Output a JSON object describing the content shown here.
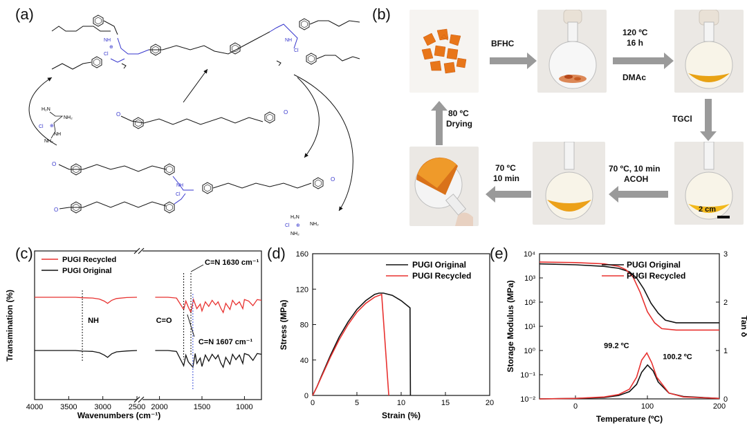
{
  "panels": {
    "a": "(a)",
    "b": "(b)",
    "c": "(c)",
    "d": "(d)",
    "e": "(e)"
  },
  "scheme_labels": {
    "nh": "NH",
    "nh2": "NH₂",
    "h2n": "H₂N",
    "cl": "Cl",
    "o": "O",
    "n": "N",
    "n_plus": "⊕",
    "cl_minus": "⊖"
  },
  "process": {
    "steps": {
      "bfhc": "BFHC",
      "heat_temp": "120 ºC",
      "heat_time": "16 h",
      "solvent": "DMAc",
      "tgcl": "TGCl",
      "react_cond": "70 ºC, 10 min",
      "acid": "ACOH",
      "cure_temp": "70 ºC",
      "cure_time": "10 min",
      "dry_temp": "80 ºC",
      "dry_word": "Drying"
    },
    "scale_bar": "2 cm"
  },
  "chart_data": [
    {
      "type": "line",
      "panel": "c",
      "xlabel": "Wavenumbers (cm⁻¹)",
      "ylabel": "Transmination (%)",
      "x_ticks": [
        "4000",
        "3500",
        "3000",
        "2500",
        "2000",
        "1500",
        "1000"
      ],
      "axis_break_between": [
        2500,
        2000
      ],
      "series": [
        {
          "name": "PUGI Recycled",
          "color": "#e8312f",
          "x": [
            4000,
            3400,
            3300,
            3150,
            3050,
            2980,
            2930,
            2870,
            2800,
            2650,
            2500,
            2050,
            1900,
            1800,
            1715,
            1690,
            1660,
            1630,
            1600,
            1560,
            1520,
            1500,
            1460,
            1420,
            1380,
            1340,
            1310,
            1280,
            1250,
            1220,
            1170,
            1140,
            1100,
            1060,
            1020,
            1000,
            950,
            900,
            850,
            800
          ],
          "y": [
            0.0,
            0.0,
            0.3,
            0.5,
            1.2,
            2.5,
            4.0,
            2.0,
            0.8,
            0.2,
            0.0,
            0.0,
            0.0,
            0.5,
            8.0,
            2.5,
            6.5,
            10.0,
            1.5,
            7.5,
            4.5,
            9.0,
            3.0,
            6.0,
            2.0,
            5.0,
            3.0,
            7.0,
            10.0,
            4.0,
            8.0,
            2.0,
            5.0,
            3.0,
            7.5,
            1.5,
            2.5,
            5.5,
            1.5,
            2.0
          ]
        },
        {
          "name": "PUGI Original",
          "color": "#111111",
          "x": [
            4000,
            3400,
            3300,
            3150,
            3050,
            2980,
            2930,
            2870,
            2800,
            2650,
            2500,
            2050,
            1900,
            1800,
            1715,
            1690,
            1660,
            1607,
            1580,
            1560,
            1520,
            1500,
            1460,
            1420,
            1380,
            1340,
            1310,
            1280,
            1250,
            1220,
            1170,
            1140,
            1100,
            1060,
            1020,
            1000,
            950,
            900,
            850,
            800
          ],
          "y": [
            0.0,
            0.0,
            0.4,
            0.6,
            1.5,
            3.0,
            4.5,
            2.2,
            0.9,
            0.3,
            0.0,
            0.0,
            0.0,
            0.6,
            10.0,
            3.0,
            7.5,
            11.0,
            2.0,
            8.5,
            5.0,
            10.5,
            3.0,
            7.0,
            2.5,
            5.5,
            3.0,
            8.0,
            11.0,
            4.5,
            9.0,
            2.5,
            6.0,
            3.0,
            8.5,
            2.0,
            3.0,
            6.5,
            2.0,
            2.5
          ]
        }
      ],
      "annotations": [
        {
          "text": "NH",
          "x": 3300
        },
        {
          "text": "C=O",
          "x": 1715
        },
        {
          "text": "C=N 1630 cm⁻¹",
          "x": 1630
        },
        {
          "text": "C=N 1607 cm⁻¹",
          "x": 1607
        }
      ],
      "legend_position": "top-left"
    },
    {
      "type": "line",
      "panel": "d",
      "xlabel": "Strain (%)",
      "ylabel": "Stress (MPa)",
      "xlim": [
        0,
        20
      ],
      "ylim": [
        0,
        160
      ],
      "x_ticks": [
        0,
        5,
        10,
        15,
        20
      ],
      "y_ticks": [
        0,
        40,
        80,
        120,
        160
      ],
      "series": [
        {
          "name": "PUGI Original",
          "color": "#111111",
          "x": [
            0,
            0.5,
            1,
            2,
            3,
            4,
            5,
            6,
            7,
            7.5,
            8,
            9,
            10,
            11,
            11.05
          ],
          "y": [
            0,
            10,
            22,
            45,
            66,
            83,
            97,
            107,
            114,
            115.5,
            115.5,
            113,
            107,
            99,
            0
          ]
        },
        {
          "name": "PUGI Recycled",
          "color": "#e8312f",
          "x": [
            0,
            0.5,
            1,
            2,
            3,
            4,
            5,
            6,
            7,
            7.8,
            8.6
          ],
          "y": [
            0,
            10,
            21,
            43,
            63,
            80,
            94,
            104,
            111,
            114,
            0
          ]
        }
      ],
      "legend_position": "top-right"
    },
    {
      "type": "line",
      "panel": "e",
      "xlabel": "Temperature (ºC)",
      "ylabel": "Storage Modulus (MPa)",
      "ylabel_right": "Tan δ",
      "xlim": [
        -50,
        200
      ],
      "y_log_range": [
        -2,
        4
      ],
      "y_ticks_log": [
        "10⁻²",
        "10⁻¹",
        "10⁰",
        "10¹",
        "10²",
        "10³",
        "10⁴"
      ],
      "y2lim": [
        0,
        3
      ],
      "x_ticks": [
        0,
        100,
        200
      ],
      "y2_ticks": [
        0,
        1,
        2,
        3
      ],
      "series": [
        {
          "name": "PUGI Original",
          "color": "#111111",
          "kind": "storage",
          "x": [
            -50,
            0,
            40,
            60,
            75,
            85,
            95,
            105,
            115,
            125,
            140,
            160,
            200
          ],
          "y": [
            3800,
            3500,
            3000,
            2500,
            1800,
            1000,
            350,
            90,
            35,
            18,
            14,
            14,
            14
          ]
        },
        {
          "name": "PUGI Recycled",
          "color": "#e8312f",
          "kind": "storage",
          "x": [
            -50,
            0,
            40,
            60,
            70,
            80,
            90,
            100,
            110,
            120,
            140,
            200
          ],
          "y": [
            4500,
            4300,
            3800,
            3000,
            2200,
            1100,
            250,
            40,
            14,
            8,
            7,
            7
          ]
        },
        {
          "name": "PUGI Original",
          "color": "#111111",
          "kind": "tan_delta",
          "x": [
            -50,
            0,
            40,
            60,
            75,
            85,
            92,
            100.2,
            108,
            115,
            130,
            150,
            200
          ],
          "y": [
            0.0,
            0.01,
            0.03,
            0.07,
            0.15,
            0.3,
            0.55,
            0.7,
            0.58,
            0.35,
            0.12,
            0.05,
            0.01
          ]
        },
        {
          "name": "PUGI Recycled",
          "color": "#e8312f",
          "kind": "tan_delta",
          "x": [
            -50,
            0,
            40,
            60,
            75,
            85,
            92,
            99.2,
            106,
            113,
            130,
            150,
            200
          ],
          "y": [
            0.0,
            0.01,
            0.04,
            0.09,
            0.2,
            0.45,
            0.8,
            0.95,
            0.75,
            0.45,
            0.12,
            0.04,
            0.01
          ]
        }
      ],
      "annotations": [
        {
          "text": "99.2 ºC",
          "x": 99.2
        },
        {
          "text": "100.2 ºC",
          "x": 100.2
        }
      ],
      "legend_position": "top-right"
    }
  ]
}
